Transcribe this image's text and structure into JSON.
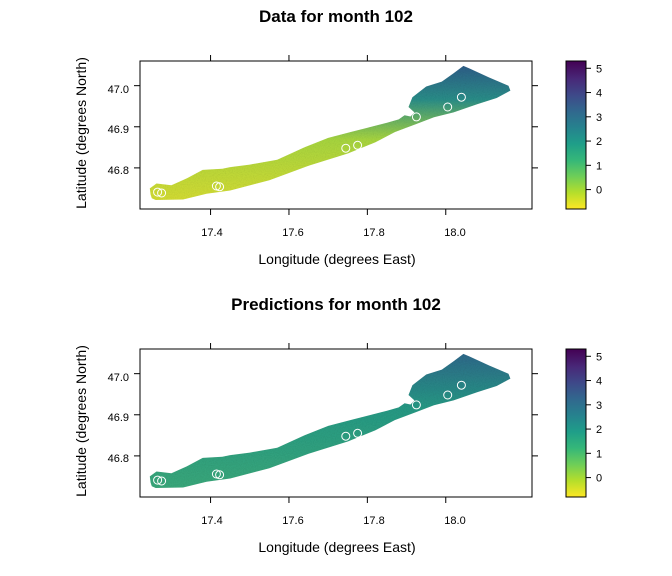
{
  "chart_data": [
    {
      "type": "heatmap",
      "title": "Data for month 102",
      "xlabel": "Longitude (degrees East)",
      "ylabel": "Latitude (degrees North)",
      "xlim": [
        17.22,
        18.22
      ],
      "ylim": [
        46.7,
        47.06
      ],
      "x_ticks": [
        "17.4",
        "17.6",
        "17.8",
        "18.0"
      ],
      "y_ticks": [
        "46.8",
        "46.9",
        "47.0"
      ],
      "colorbar": {
        "min": -0.8,
        "max": 5.3,
        "ticks": [
          "0",
          "1",
          "2",
          "3",
          "4",
          "5"
        ]
      },
      "stations": [
        {
          "lon": 17.265,
          "lat": 46.741
        },
        {
          "lon": 17.275,
          "lat": 46.739
        },
        {
          "lon": 17.415,
          "lat": 46.756
        },
        {
          "lon": 17.423,
          "lat": 46.754
        },
        {
          "lon": 17.745,
          "lat": 46.848
        },
        {
          "lon": 17.775,
          "lat": 46.855
        },
        {
          "lon": 17.925,
          "lat": 46.924
        },
        {
          "lon": 18.005,
          "lat": 46.948
        },
        {
          "lon": 18.04,
          "lat": 46.972
        }
      ]
    },
    {
      "type": "heatmap",
      "title": "Predictions for month 102",
      "xlabel": "Longitude (degrees East)",
      "ylabel": "Latitude (degrees North)",
      "xlim": [
        17.22,
        18.22
      ],
      "ylim": [
        46.7,
        47.06
      ],
      "x_ticks": [
        "17.4",
        "17.6",
        "17.8",
        "18.0"
      ],
      "y_ticks": [
        "46.8",
        "46.9",
        "47.0"
      ],
      "colorbar": {
        "min": -0.8,
        "max": 5.3,
        "ticks": [
          "0",
          "1",
          "2",
          "3",
          "4",
          "5"
        ]
      },
      "stations": [
        {
          "lon": 17.265,
          "lat": 46.741
        },
        {
          "lon": 17.275,
          "lat": 46.739
        },
        {
          "lon": 17.415,
          "lat": 46.756
        },
        {
          "lon": 17.423,
          "lat": 46.754
        },
        {
          "lon": 17.745,
          "lat": 46.848
        },
        {
          "lon": 17.775,
          "lat": 46.855
        },
        {
          "lon": 17.925,
          "lat": 46.924
        },
        {
          "lon": 18.005,
          "lat": 46.948
        },
        {
          "lon": 18.04,
          "lat": 46.972
        }
      ]
    }
  ],
  "colors": {
    "viridis": [
      "#fde725",
      "#b5de2b",
      "#6ece58",
      "#35b779",
      "#1f9e89",
      "#26828e",
      "#31688e",
      "#3e4989",
      "#482878",
      "#440154"
    ],
    "lake_data_shore": "#2f7a8e",
    "lake_data_center": "#c8d93a",
    "lake_pred_shore": "#2a7f8a",
    "lake_pred_center": "#35a383",
    "station_stroke": "#ffffff"
  }
}
